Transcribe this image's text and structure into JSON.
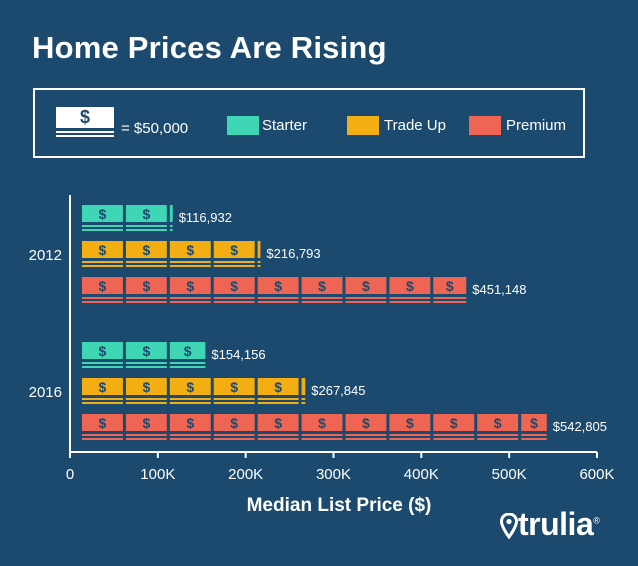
{
  "title": "Home Prices Are Rising",
  "legend": {
    "bill_symbol": "$",
    "bill_equals": "= $50,000",
    "items": [
      {
        "label": "Starter",
        "color": "#3ed6b5"
      },
      {
        "label": "Trade Up",
        "color": "#f2ae12"
      },
      {
        "label": "Premium",
        "color": "#ee6553"
      }
    ]
  },
  "logo": {
    "text": "trulia",
    "mark": "®",
    "icon": "location-pin-icon"
  },
  "chart_data": {
    "type": "bar",
    "orientation": "horizontal",
    "title": "Home Prices Are Rising",
    "xlabel": "Median List Price ($)",
    "ylabel": "",
    "xlim": [
      0,
      600000
    ],
    "xticks": [
      0,
      100000,
      200000,
      300000,
      400000,
      500000,
      600000
    ],
    "xtick_labels": [
      "0",
      "100K",
      "200K",
      "300K",
      "400K",
      "500K",
      "600K"
    ],
    "unit_value": 50000,
    "unit_symbol": "$",
    "categories": [
      "2012",
      "2016"
    ],
    "series": [
      {
        "name": "Starter",
        "color": "#3ed6b5",
        "values": [
          116932,
          154156
        ],
        "labels": [
          "$116,932",
          "$154,156"
        ]
      },
      {
        "name": "Trade Up",
        "color": "#f2ae12",
        "values": [
          216793,
          267845
        ],
        "labels": [
          "$216,793",
          "$267,845"
        ]
      },
      {
        "name": "Premium",
        "color": "#ee6553",
        "values": [
          451148,
          542805
        ],
        "labels": [
          "$451,148",
          "$542,805"
        ]
      }
    ]
  }
}
